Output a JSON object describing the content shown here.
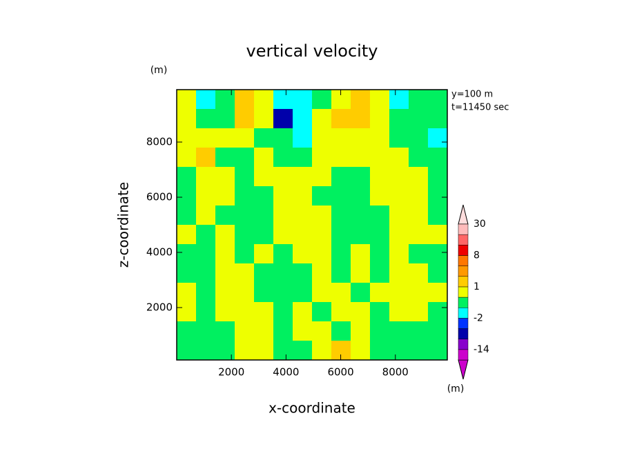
{
  "chart_data": {
    "type": "contour",
    "title": "vertical velocity",
    "x_label": "x-coordinate",
    "y_label": "z-coordinate",
    "y_unit": "(m)",
    "colorbar_unit": "(m)",
    "annotations": [
      "y=100 m",
      "t=11450 sec"
    ],
    "xlim": [
      0,
      9900
    ],
    "ylim": [
      100,
      9900
    ],
    "xticks": [
      2000,
      4000,
      6000,
      8000
    ],
    "yticks": [
      2000,
      4000,
      6000,
      8000
    ],
    "levels": [
      -20,
      -14,
      -8,
      -4,
      -2,
      -1,
      0,
      1,
      2,
      4,
      8,
      12,
      20,
      30
    ],
    "level_colors": [
      "#cc00cc",
      "#8800cc",
      "#0000aa",
      "#0033ff",
      "#00ffff",
      "#00f060",
      "#eeff00",
      "#ffcc00",
      "#ff9900",
      "#ff7700",
      "#ee0000",
      "#ff6666",
      "#ffbbbb"
    ],
    "under_color": "#cc00cc",
    "over_color": "#ffdddd",
    "colorbar_ticks": [
      -14,
      -2,
      1,
      8,
      30
    ],
    "z": [
      [
        0.5,
        -1.5,
        -0.5,
        1.5,
        0.5,
        -1.5,
        -1.5,
        -0.5,
        0.5,
        1.5,
        0.5,
        -1.5,
        -0.5,
        -0.5
      ],
      [
        0.5,
        -0.5,
        -0.5,
        1.5,
        0.5,
        -6,
        -1.5,
        0.5,
        1.5,
        1.5,
        0.5,
        -0.5,
        -0.5,
        -0.5
      ],
      [
        0.5,
        0.5,
        0.5,
        0.5,
        -0.5,
        -0.5,
        -1.5,
        0.5,
        0.5,
        0.5,
        0.5,
        -0.5,
        -0.5,
        -1.5
      ],
      [
        0.5,
        1.5,
        -0.5,
        -0.5,
        0.5,
        -0.5,
        -0.5,
        0.5,
        0.5,
        0.5,
        0.5,
        0.5,
        -0.5,
        -0.5
      ],
      [
        -0.5,
        0.5,
        0.5,
        -0.5,
        0.5,
        0.5,
        0.5,
        0.5,
        -0.5,
        -0.5,
        0.5,
        0.5,
        0.5,
        -0.5
      ],
      [
        -0.5,
        0.5,
        0.5,
        -0.5,
        -0.5,
        0.5,
        0.5,
        -0.5,
        -0.5,
        -0.5,
        0.5,
        0.5,
        0.5,
        -0.5
      ],
      [
        -0.5,
        0.5,
        -0.5,
        -0.5,
        -0.5,
        0.5,
        0.5,
        0.5,
        -0.5,
        -0.5,
        -0.5,
        0.5,
        0.5,
        -0.5
      ],
      [
        0.5,
        -0.5,
        0.5,
        -0.5,
        -0.5,
        0.5,
        0.5,
        0.5,
        -0.5,
        -0.5,
        -0.5,
        0.5,
        0.5,
        0.5
      ],
      [
        -0.5,
        -0.5,
        0.5,
        -0.5,
        0.5,
        -0.5,
        0.5,
        0.5,
        -0.5,
        0.5,
        -0.5,
        0.5,
        -0.5,
        -0.5
      ],
      [
        -0.5,
        -0.5,
        0.5,
        0.5,
        -0.5,
        -0.5,
        -0.5,
        0.5,
        -0.5,
        0.5,
        -0.5,
        0.5,
        0.5,
        -0.5
      ],
      [
        0.5,
        -0.5,
        0.5,
        0.5,
        -0.5,
        -0.5,
        -0.5,
        0.5,
        0.5,
        -0.5,
        0.5,
        0.5,
        0.5,
        0.5
      ],
      [
        0.5,
        -0.5,
        0.5,
        0.5,
        0.5,
        -0.5,
        0.5,
        -0.5,
        0.5,
        0.5,
        -0.5,
        0.5,
        0.5,
        -0.5
      ],
      [
        -0.5,
        -0.5,
        -0.5,
        0.5,
        0.5,
        -0.5,
        0.5,
        0.5,
        -0.5,
        0.5,
        -0.5,
        -0.5,
        -0.5,
        -0.5
      ],
      [
        -0.5,
        -0.5,
        -0.5,
        0.5,
        0.5,
        -0.5,
        -0.5,
        0.5,
        1.5,
        0.5,
        -0.5,
        -0.5,
        -0.5,
        -0.5
      ]
    ]
  }
}
